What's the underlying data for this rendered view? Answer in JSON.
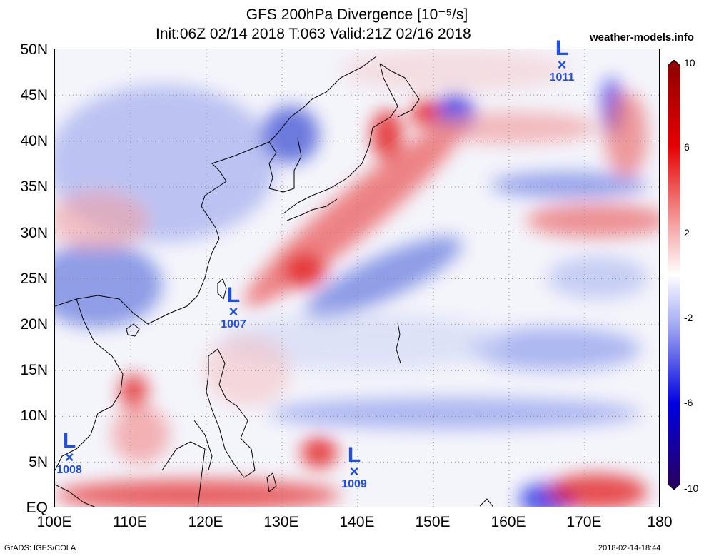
{
  "title": {
    "line1": "GFS 200hPa Divergence [10⁻⁵/s]",
    "line2": "Init:06Z 02/14 2018 T:063 Valid:21Z 02/16 2018"
  },
  "site": "weather-models.info",
  "axes": {
    "lat_labels": [
      "50N",
      "45N",
      "40N",
      "35N",
      "30N",
      "25N",
      "20N",
      "15N",
      "10N",
      "5N",
      "EQ"
    ],
    "lon_labels": [
      "100E",
      "110E",
      "120E",
      "130E",
      "140E",
      "150E",
      "160E",
      "170E",
      "180"
    ]
  },
  "colorbar": {
    "labels": [
      "10",
      "6",
      "2",
      "-2",
      "-6",
      "-10"
    ],
    "colors": {
      "max": "#8b0000",
      "pos": "#e60000",
      "neutral": "#ffffff",
      "neg": "#0000e0",
      "min": "#2a005a"
    }
  },
  "lows": [
    {
      "pressure": "1011"
    },
    {
      "pressure": "1007"
    },
    {
      "pressure": "1008"
    },
    {
      "pressure": "1009"
    }
  ],
  "footer": {
    "left": "GrADS: IGES/COLA",
    "right": "2018-02-14-18:44"
  },
  "low_marker": {
    "letter": "L",
    "symbol": "×"
  }
}
